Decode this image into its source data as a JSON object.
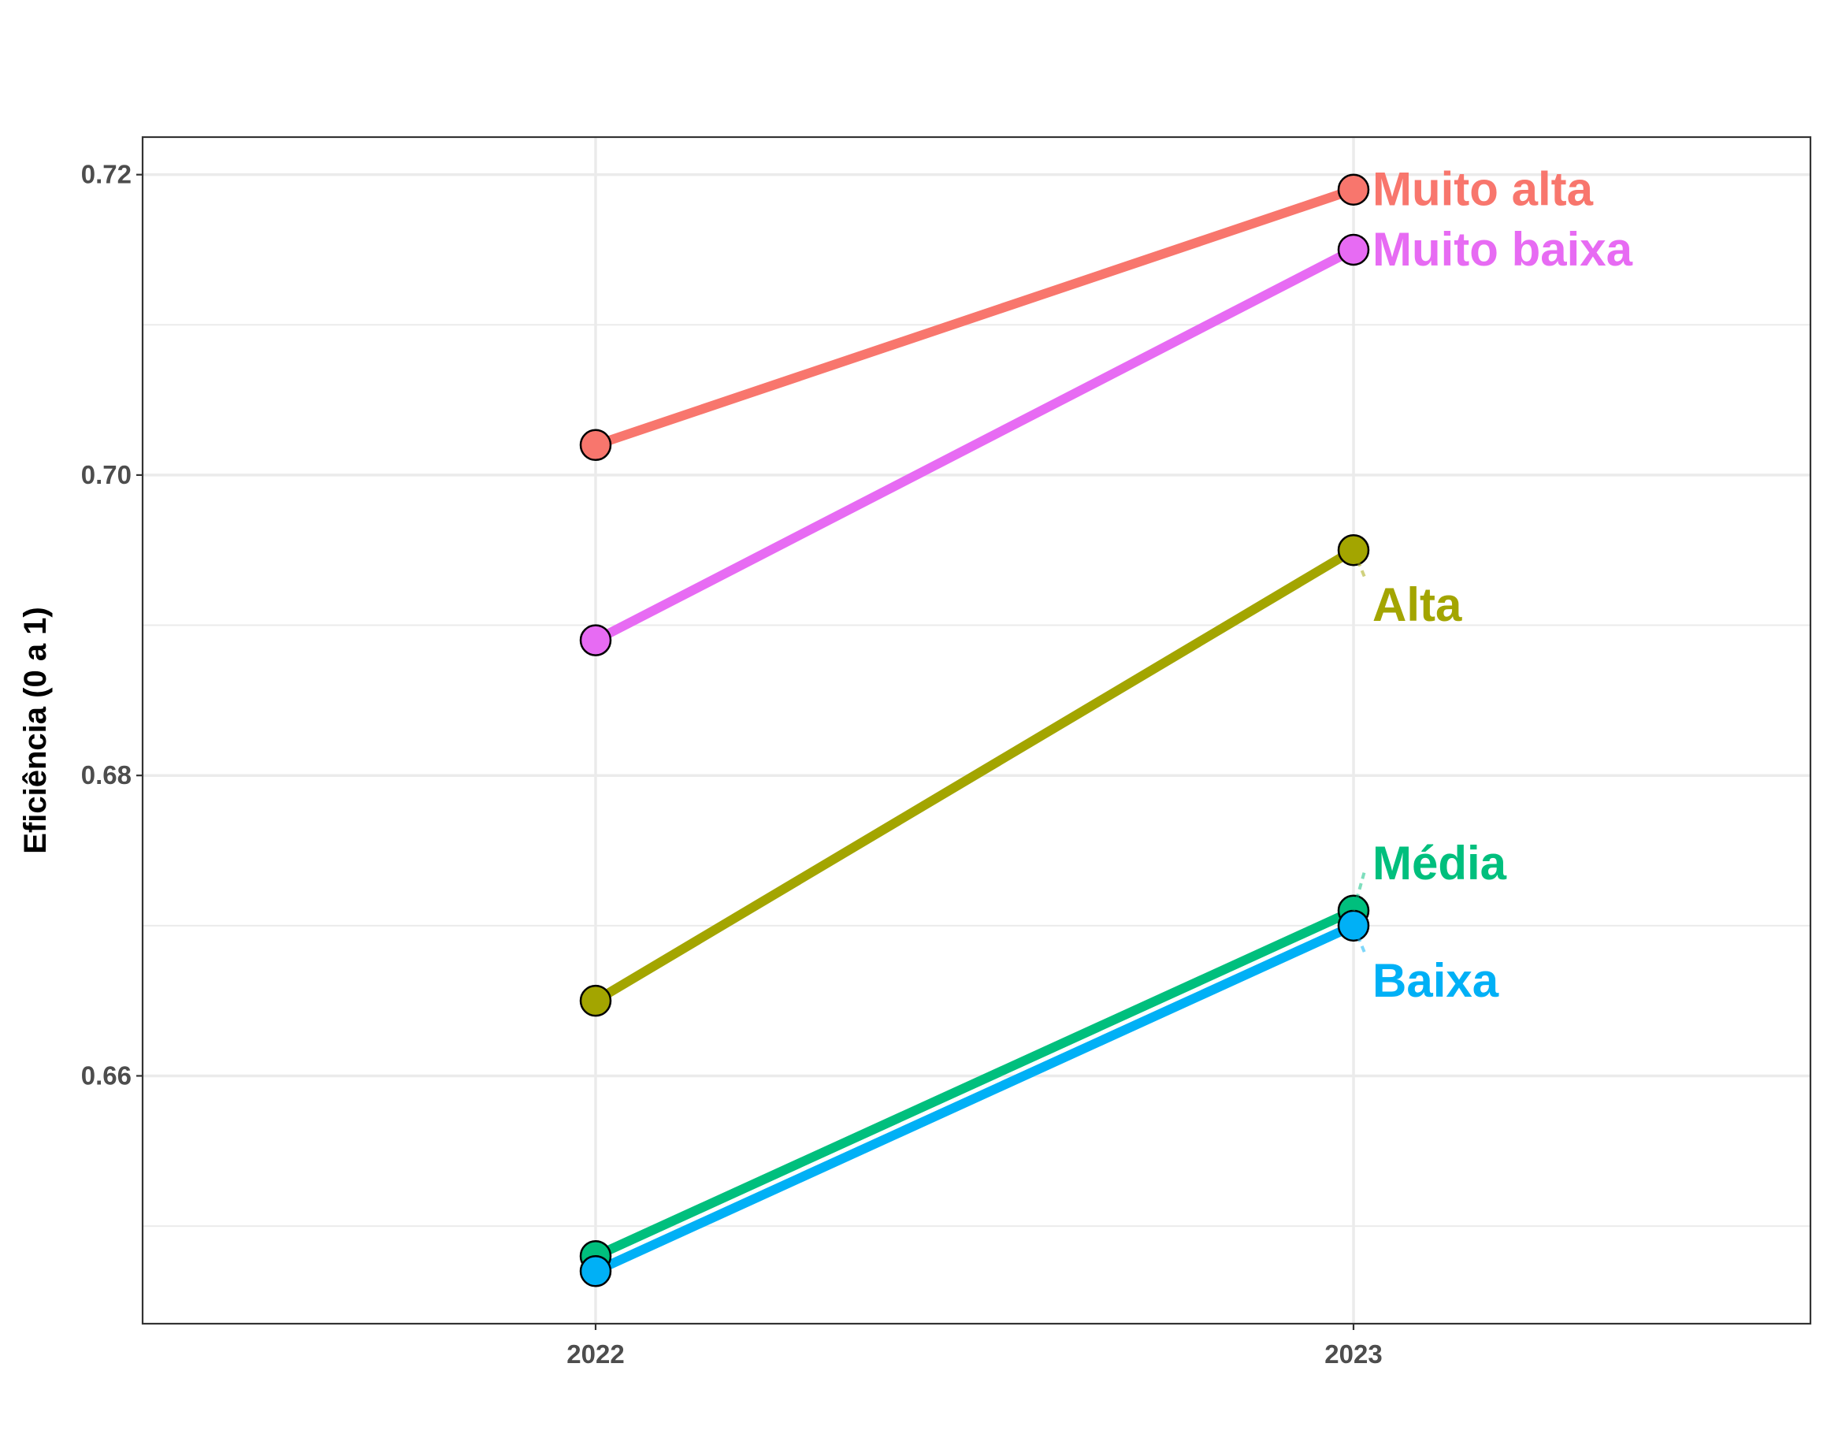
{
  "chart_data": {
    "type": "line",
    "title": "",
    "xlabel": "",
    "ylabel": "Eficiência (0 a 1)",
    "categories": [
      "2022",
      "2023"
    ],
    "ylim": [
      0.6435,
      0.7225
    ],
    "y_ticks": [
      "0.66",
      "0.68",
      "0.70",
      "0.72"
    ],
    "y_tick_values": [
      0.66,
      0.68,
      0.7,
      0.72
    ],
    "y_minor_ticks": [
      0.65,
      0.67,
      0.69,
      0.71
    ],
    "grid": true,
    "legend": "none (direct labels at line ends)",
    "series": [
      {
        "name": "Muito alta",
        "values": [
          0.702,
          0.719
        ],
        "color": "#F8766D"
      },
      {
        "name": "Muito baixa",
        "values": [
          0.689,
          0.715
        ],
        "color": "#E76BF3"
      },
      {
        "name": "Alta",
        "values": [
          0.665,
          0.695
        ],
        "color": "#A3A500"
      },
      {
        "name": "Média",
        "values": [
          0.648,
          0.671
        ],
        "color": "#00BF7D"
      },
      {
        "name": "Baixa",
        "values": [
          0.647,
          0.67
        ],
        "color": "#00B0F6"
      }
    ]
  }
}
